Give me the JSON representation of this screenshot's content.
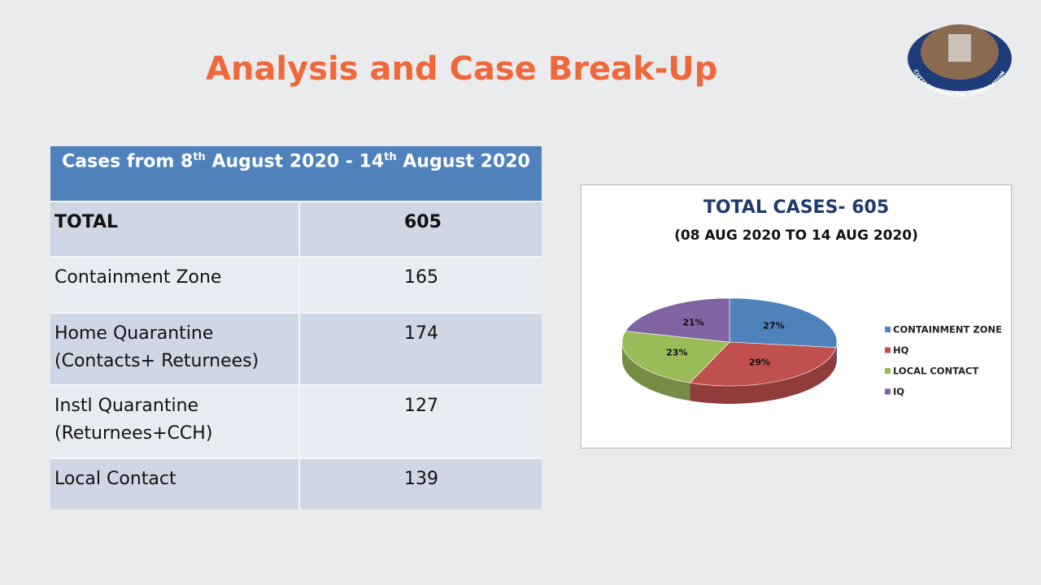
{
  "title": "Analysis and Case Break-Up",
  "logo_text": "CUTTACK MUNICIPAL CORPORATION",
  "table": {
    "header": [
      "Cases from 8",
      "th",
      " August 2020 - 14",
      "th",
      " August 2020"
    ],
    "rows": [
      {
        "label": [
          "TOTAL"
        ],
        "value": 605
      },
      {
        "label": [
          "Containment Zone"
        ],
        "value": 165
      },
      {
        "label": [
          "Home Quarantine",
          "(Contacts+ Returnees)"
        ],
        "value": 174
      },
      {
        "label": [
          "Instl Quarantine",
          "(Returnees+CCH)"
        ],
        "value": 127
      },
      {
        "label": [
          "Local Contact"
        ],
        "value": 139
      }
    ]
  },
  "chart_data": {
    "type": "pie",
    "title": "TOTAL CASES- 605",
    "subtitle": "(08 AUG 2020 TO 14 AUG 2020)",
    "categories": [
      "CONTAINMENT ZONE",
      "HQ",
      "LOCAL CONTACT",
      "IQ"
    ],
    "values": [
      27,
      29,
      23,
      21
    ],
    "value_labels": [
      "27%",
      "29%",
      "23%",
      "21%"
    ],
    "colors": [
      "#4f81bd",
      "#c0504d",
      "#9bbb59",
      "#8064a2"
    ],
    "legend": "right"
  }
}
